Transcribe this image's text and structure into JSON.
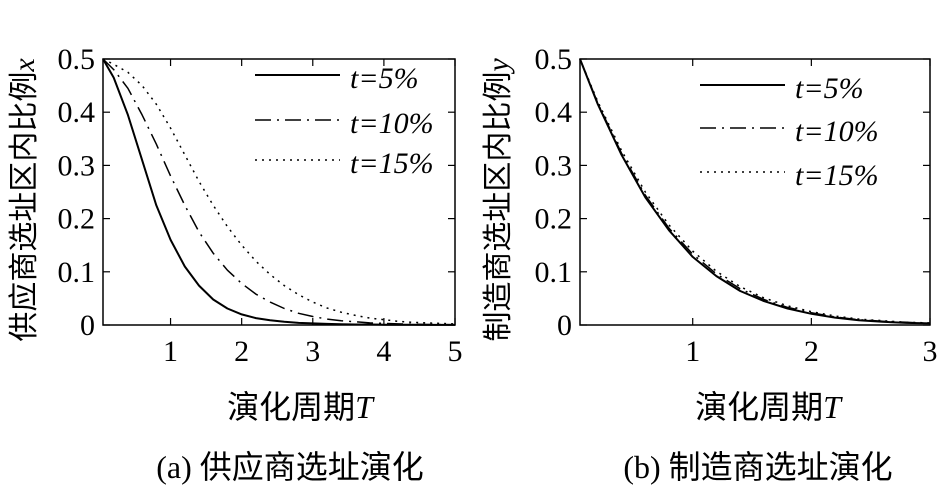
{
  "chart_data": [
    {
      "type": "line",
      "panel_label": "(a) 供应商选址演化",
      "xlabel": "演化周期",
      "xlabel_var": "T",
      "ylabel": "供应商选址区内比例",
      "ylabel_var": "x",
      "xlim": [
        0.05,
        5
      ],
      "ylim": [
        0,
        0.5
      ],
      "xticks": [
        1,
        2,
        3,
        4,
        5
      ],
      "yticks": [
        0,
        0.1,
        0.2,
        0.3,
        0.4,
        0.5
      ],
      "grid": false,
      "legend_position": "top-right",
      "series": [
        {
          "name": "t=5%",
          "style": "solid",
          "x": [
            0.05,
            0.2,
            0.4,
            0.6,
            0.8,
            1.0,
            1.2,
            1.4,
            1.6,
            1.8,
            2.0,
            2.2,
            2.4,
            2.6,
            2.8,
            3.0,
            3.2,
            3.4,
            3.6,
            3.8,
            4.0,
            4.2,
            4.4,
            4.6,
            4.8,
            5.0
          ],
          "y": [
            0.5,
            0.465,
            0.395,
            0.31,
            0.225,
            0.16,
            0.11,
            0.074,
            0.048,
            0.031,
            0.02,
            0.013,
            0.009,
            0.006,
            0.004,
            0.003,
            0.002,
            0.0015,
            0.001,
            0.001,
            0.0005,
            0.0005,
            0.0003,
            0.0002,
            0.0001,
            0.0001
          ]
        },
        {
          "name": "t=10%",
          "style": "dashdot",
          "x": [
            0.05,
            0.2,
            0.4,
            0.6,
            0.8,
            1.0,
            1.2,
            1.4,
            1.6,
            1.8,
            2.0,
            2.2,
            2.4,
            2.6,
            2.8,
            3.0,
            3.2,
            3.4,
            3.6,
            3.8,
            4.0,
            4.2,
            4.4,
            4.6,
            4.8,
            5.0
          ],
          "y": [
            0.5,
            0.48,
            0.445,
            0.395,
            0.34,
            0.28,
            0.225,
            0.175,
            0.135,
            0.103,
            0.078,
            0.058,
            0.043,
            0.031,
            0.022,
            0.016,
            0.011,
            0.008,
            0.006,
            0.004,
            0.003,
            0.002,
            0.0015,
            0.001,
            0.0007,
            0.0005
          ]
        },
        {
          "name": "t=15%",
          "style": "dotted",
          "x": [
            0.05,
            0.2,
            0.4,
            0.6,
            0.8,
            1.0,
            1.2,
            1.4,
            1.6,
            1.8,
            2.0,
            2.2,
            2.4,
            2.6,
            2.8,
            3.0,
            3.2,
            3.4,
            3.6,
            3.8,
            4.0,
            4.2,
            4.4,
            4.6,
            4.8,
            5.0
          ],
          "y": [
            0.5,
            0.49,
            0.475,
            0.45,
            0.415,
            0.37,
            0.32,
            0.27,
            0.225,
            0.185,
            0.15,
            0.12,
            0.095,
            0.074,
            0.057,
            0.043,
            0.032,
            0.024,
            0.018,
            0.013,
            0.01,
            0.007,
            0.005,
            0.004,
            0.003,
            0.002
          ]
        }
      ]
    },
    {
      "type": "line",
      "panel_label": "(b) 制造商选址演化",
      "xlabel": "演化周期",
      "xlabel_var": "T",
      "ylabel": "制造商选址区内比例",
      "ylabel_var": "y",
      "xlim": [
        0.05,
        3
      ],
      "ylim": [
        0,
        0.5
      ],
      "xticks": [
        1,
        2,
        3
      ],
      "yticks": [
        0,
        0.1,
        0.2,
        0.3,
        0.4,
        0.5
      ],
      "grid": false,
      "legend_position": "top-right",
      "series": [
        {
          "name": "t=5%",
          "style": "solid",
          "x": [
            0.05,
            0.2,
            0.4,
            0.6,
            0.8,
            1.0,
            1.2,
            1.4,
            1.6,
            1.8,
            2.0,
            2.2,
            2.4,
            2.6,
            2.8,
            3.0
          ],
          "y": [
            0.5,
            0.415,
            0.32,
            0.24,
            0.178,
            0.128,
            0.092,
            0.064,
            0.045,
            0.031,
            0.021,
            0.014,
            0.009,
            0.006,
            0.004,
            0.003
          ]
        },
        {
          "name": "t=10%",
          "style": "dashdot",
          "x": [
            0.05,
            0.2,
            0.4,
            0.6,
            0.8,
            1.0,
            1.2,
            1.4,
            1.6,
            1.8,
            2.0,
            2.2,
            2.4,
            2.6,
            2.8,
            3.0
          ],
          "y": [
            0.5,
            0.417,
            0.323,
            0.244,
            0.182,
            0.133,
            0.096,
            0.068,
            0.048,
            0.033,
            0.023,
            0.015,
            0.01,
            0.007,
            0.005,
            0.003
          ]
        },
        {
          "name": "t=15%",
          "style": "dotted",
          "x": [
            0.05,
            0.2,
            0.4,
            0.6,
            0.8,
            1.0,
            1.2,
            1.4,
            1.6,
            1.8,
            2.0,
            2.2,
            2.4,
            2.6,
            2.8,
            3.0
          ],
          "y": [
            0.5,
            0.42,
            0.328,
            0.25,
            0.188,
            0.139,
            0.101,
            0.072,
            0.051,
            0.036,
            0.025,
            0.017,
            0.011,
            0.008,
            0.005,
            0.004
          ]
        }
      ]
    }
  ]
}
